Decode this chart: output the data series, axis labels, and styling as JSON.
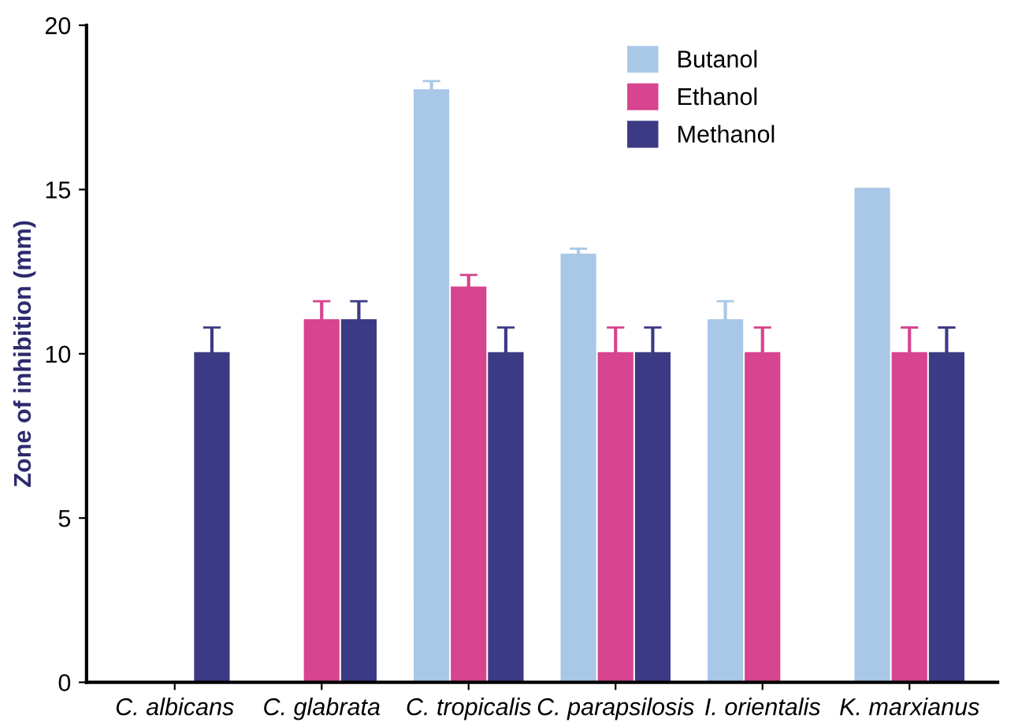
{
  "chart_data": {
    "type": "bar",
    "ylabel": "Zone of inhibition (mm)",
    "categories": [
      "C. albicans",
      "C. glabrata",
      "C. tropicalis",
      "C. parapsilosis",
      "I. orientalis",
      "K. marxianus"
    ],
    "series": [
      {
        "name": "Butanol",
        "color": "#a9c8e8",
        "values": [
          null,
          null,
          18,
          13,
          11,
          15
        ],
        "errors": [
          null,
          null,
          [
            18,
            18.3
          ],
          [
            13,
            13.2
          ],
          [
            11,
            11.6
          ],
          null
        ]
      },
      {
        "name": "Ethanol",
        "color": "#d7448f",
        "values": [
          null,
          11,
          12,
          10,
          10,
          10
        ],
        "errors": [
          null,
          [
            11,
            11.6
          ],
          [
            12,
            12.4
          ],
          [
            10,
            10.8
          ],
          [
            10,
            10.8
          ],
          [
            10,
            10.8
          ]
        ]
      },
      {
        "name": "Methanol",
        "color": "#3d3a85",
        "values": [
          10,
          11,
          10,
          10,
          null,
          10
        ],
        "errors": [
          [
            10,
            10.8
          ],
          [
            11,
            11.6
          ],
          [
            10,
            10.8
          ],
          [
            10,
            10.8
          ],
          null,
          [
            10,
            10.8
          ]
        ]
      }
    ],
    "ylim": [
      0,
      20
    ],
    "yticks": [
      0,
      5,
      10,
      15,
      20
    ],
    "grid": false,
    "legend": "top right"
  }
}
